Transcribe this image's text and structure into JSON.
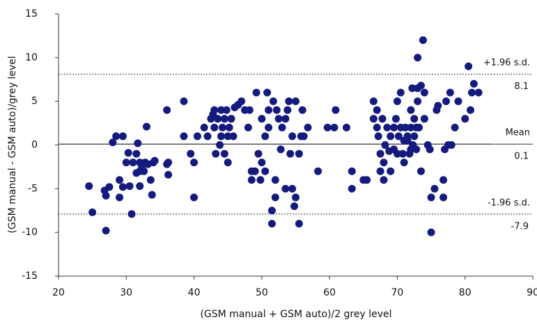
{
  "chart_data": {
    "type": "scatter",
    "xlabel": "(GSM manual + GSM auto)/2 grey level",
    "ylabel": "(GSM manual - GSM auto)/grey level",
    "xlim": [
      20,
      90
    ],
    "xticks": [
      20,
      30,
      40,
      50,
      60,
      70,
      80,
      90
    ],
    "ylim": [
      -15,
      15
    ],
    "yticks": [
      -15,
      -10,
      -5,
      0,
      5,
      10,
      15
    ],
    "color": "#141a7e",
    "reference_lines": [
      {
        "name": "+1.96 s.d.",
        "value": 8.1,
        "dashed": true
      },
      {
        "name": "Mean",
        "value": 0.1,
        "dashed": false
      },
      {
        "name": "-1.96 s.d.",
        "value": -7.9,
        "dashed": true
      }
    ],
    "x": [
      24.5,
      25,
      26.8,
      27,
      27,
      27.5,
      28,
      28.5,
      29,
      29,
      29.5,
      29.5,
      30,
      30.3,
      30.5,
      30.8,
      31,
      31.5,
      31.5,
      31.7,
      32,
      32,
      32,
      32.3,
      32.6,
      32.8,
      33,
      33.2,
      33.6,
      33.8,
      34,
      34.2,
      36,
      36,
      36.2,
      36.2,
      38.5,
      38.5,
      39.5,
      40,
      40,
      40.5,
      41.5,
      42,
      42.5,
      42.8,
      43,
      43,
      43.2,
      43.5,
      43.8,
      44,
      44,
      44.2,
      44.5,
      44.5,
      44.8,
      45,
      45,
      45.2,
      45.5,
      45.8,
      46,
      46.5,
      47,
      47.5,
      48,
      48.2,
      48.5,
      48.5,
      49,
      49.2,
      49.5,
      49.8,
      50,
      50,
      50.5,
      50.5,
      50.8,
      51,
      51,
      51.5,
      51.5,
      51.7,
      52,
      52,
      52.2,
      52.5,
      52.8,
      53,
      53.5,
      53.5,
      53.8,
      54,
      54.2,
      54.5,
      54.5,
      54.8,
      55,
      55,
      55.5,
      55.5,
      55.8,
      56,
      56.2,
      56.8,
      58.3,
      59.7,
      60.7,
      60.9,
      62.5,
      63.3,
      63.3,
      65,
      65.5,
      66.5,
      66.5,
      67,
      67,
      67.2,
      67.5,
      67.5,
      67.8,
      68,
      68,
      68.2,
      68.5,
      68.8,
      69,
      69,
      69.5,
      69.5,
      69.8,
      70,
      70,
      70.2,
      70.5,
      70.5,
      70.8,
      71,
      71,
      71.2,
      71.5,
      71.5,
      71.8,
      72,
      72,
      72,
      72.2,
      72.3,
      72.5,
      72.5,
      72.8,
      72.8,
      73,
      73,
      73,
      73.2,
      73.5,
      73.5,
      73.8,
      74,
      74,
      74.5,
      74.8,
      75,
      75,
      75.5,
      75.8,
      76,
      76.8,
      76.8,
      77,
      77.2,
      77.5,
      77.8,
      78,
      78.5,
      79,
      80,
      80.5,
      80.8,
      81,
      81.3,
      82
    ],
    "values": [
      -4.7,
      -7.7,
      -5.2,
      -5.8,
      -9.8,
      -4.8,
      0.3,
      1,
      -4,
      -6,
      -4.8,
      1,
      -2,
      -0.9,
      -4.7,
      -7.9,
      -2,
      -3.2,
      -1,
      0.2,
      -2,
      -3,
      -4.7,
      -2.4,
      -3,
      -2,
      2.1,
      -2.2,
      -4,
      -5.7,
      -2,
      -1.8,
      4,
      -2.2,
      -3.4,
      -2,
      5,
      1,
      -1,
      -2,
      -6,
      1,
      2,
      1,
      3,
      3.5,
      2,
      4,
      -1,
      3,
      0,
      1,
      4,
      2,
      -1,
      3,
      4,
      1,
      -2,
      2,
      3,
      1,
      4.3,
      4.6,
      5,
      4,
      2,
      4,
      -3,
      -4,
      -3,
      6,
      -1,
      -4,
      3,
      -2,
      -3,
      1,
      6,
      4,
      2,
      -9,
      -7.5,
      5,
      -4,
      -6,
      4,
      3,
      -0.5,
      2,
      3,
      -5,
      4,
      5,
      -1,
      1,
      -5,
      -7,
      5,
      -6,
      -9,
      -1,
      1,
      4,
      1,
      2,
      -3,
      2,
      2,
      4,
      2,
      -3,
      -5,
      -4,
      -4,
      3,
      5,
      2,
      4,
      1,
      -1,
      -3,
      3,
      -2,
      -4,
      0,
      2,
      -0.7,
      -3,
      1,
      -0.5,
      2,
      3,
      -1,
      5,
      1,
      2,
      6,
      -1,
      0.5,
      -2,
      2,
      1,
      0.5,
      -1,
      4,
      2,
      -0.5,
      6.5,
      0,
      3,
      1,
      2,
      -0.5,
      10,
      6.5,
      5,
      2,
      6.8,
      -3,
      12,
      6,
      3,
      0,
      -0.5,
      -10,
      -6,
      -5,
      4,
      4.5,
      -4,
      -6,
      -0.5,
      5,
      0,
      6,
      0,
      2,
      5,
      3,
      9,
      4,
      6,
      7,
      6
    ]
  }
}
